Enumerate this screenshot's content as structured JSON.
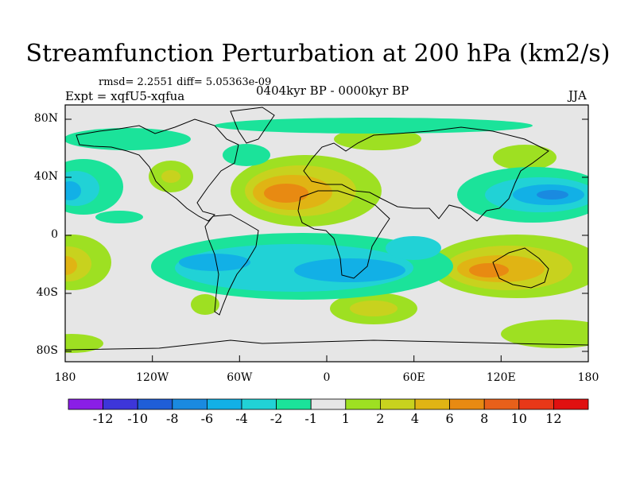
{
  "title": "Streamfunction Perturbation at 200 hPa (km2/s)",
  "stats_line": "rmsd= 2.2551 diff= 5.05363e-09",
  "experiment": "Expt = xqfU5-xqfua",
  "period": "0404kyr BP - 0000kyr BP",
  "season": "JJA",
  "lat_labels": [
    "80N",
    "40N",
    "0",
    "40S",
    "80S"
  ],
  "lon_labels": [
    "180",
    "120W",
    "60W",
    "0",
    "60E",
    "120E",
    "180"
  ],
  "colorbar": {
    "labels": [
      "-12",
      "-10",
      "-8",
      "-6",
      "-4",
      "-2",
      "-1",
      "1",
      "2",
      "4",
      "6",
      "8",
      "10",
      "12"
    ],
    "colors": [
      "#8a1ee6",
      "#3d36d9",
      "#1f5ed8",
      "#1a8ae0",
      "#12b0e6",
      "#21d2d6",
      "#1be39a",
      "#e6e6e6",
      "#9ee022",
      "#c8d21e",
      "#e0b414",
      "#e88a12",
      "#e8601a",
      "#e83818",
      "#e01010"
    ]
  }
}
